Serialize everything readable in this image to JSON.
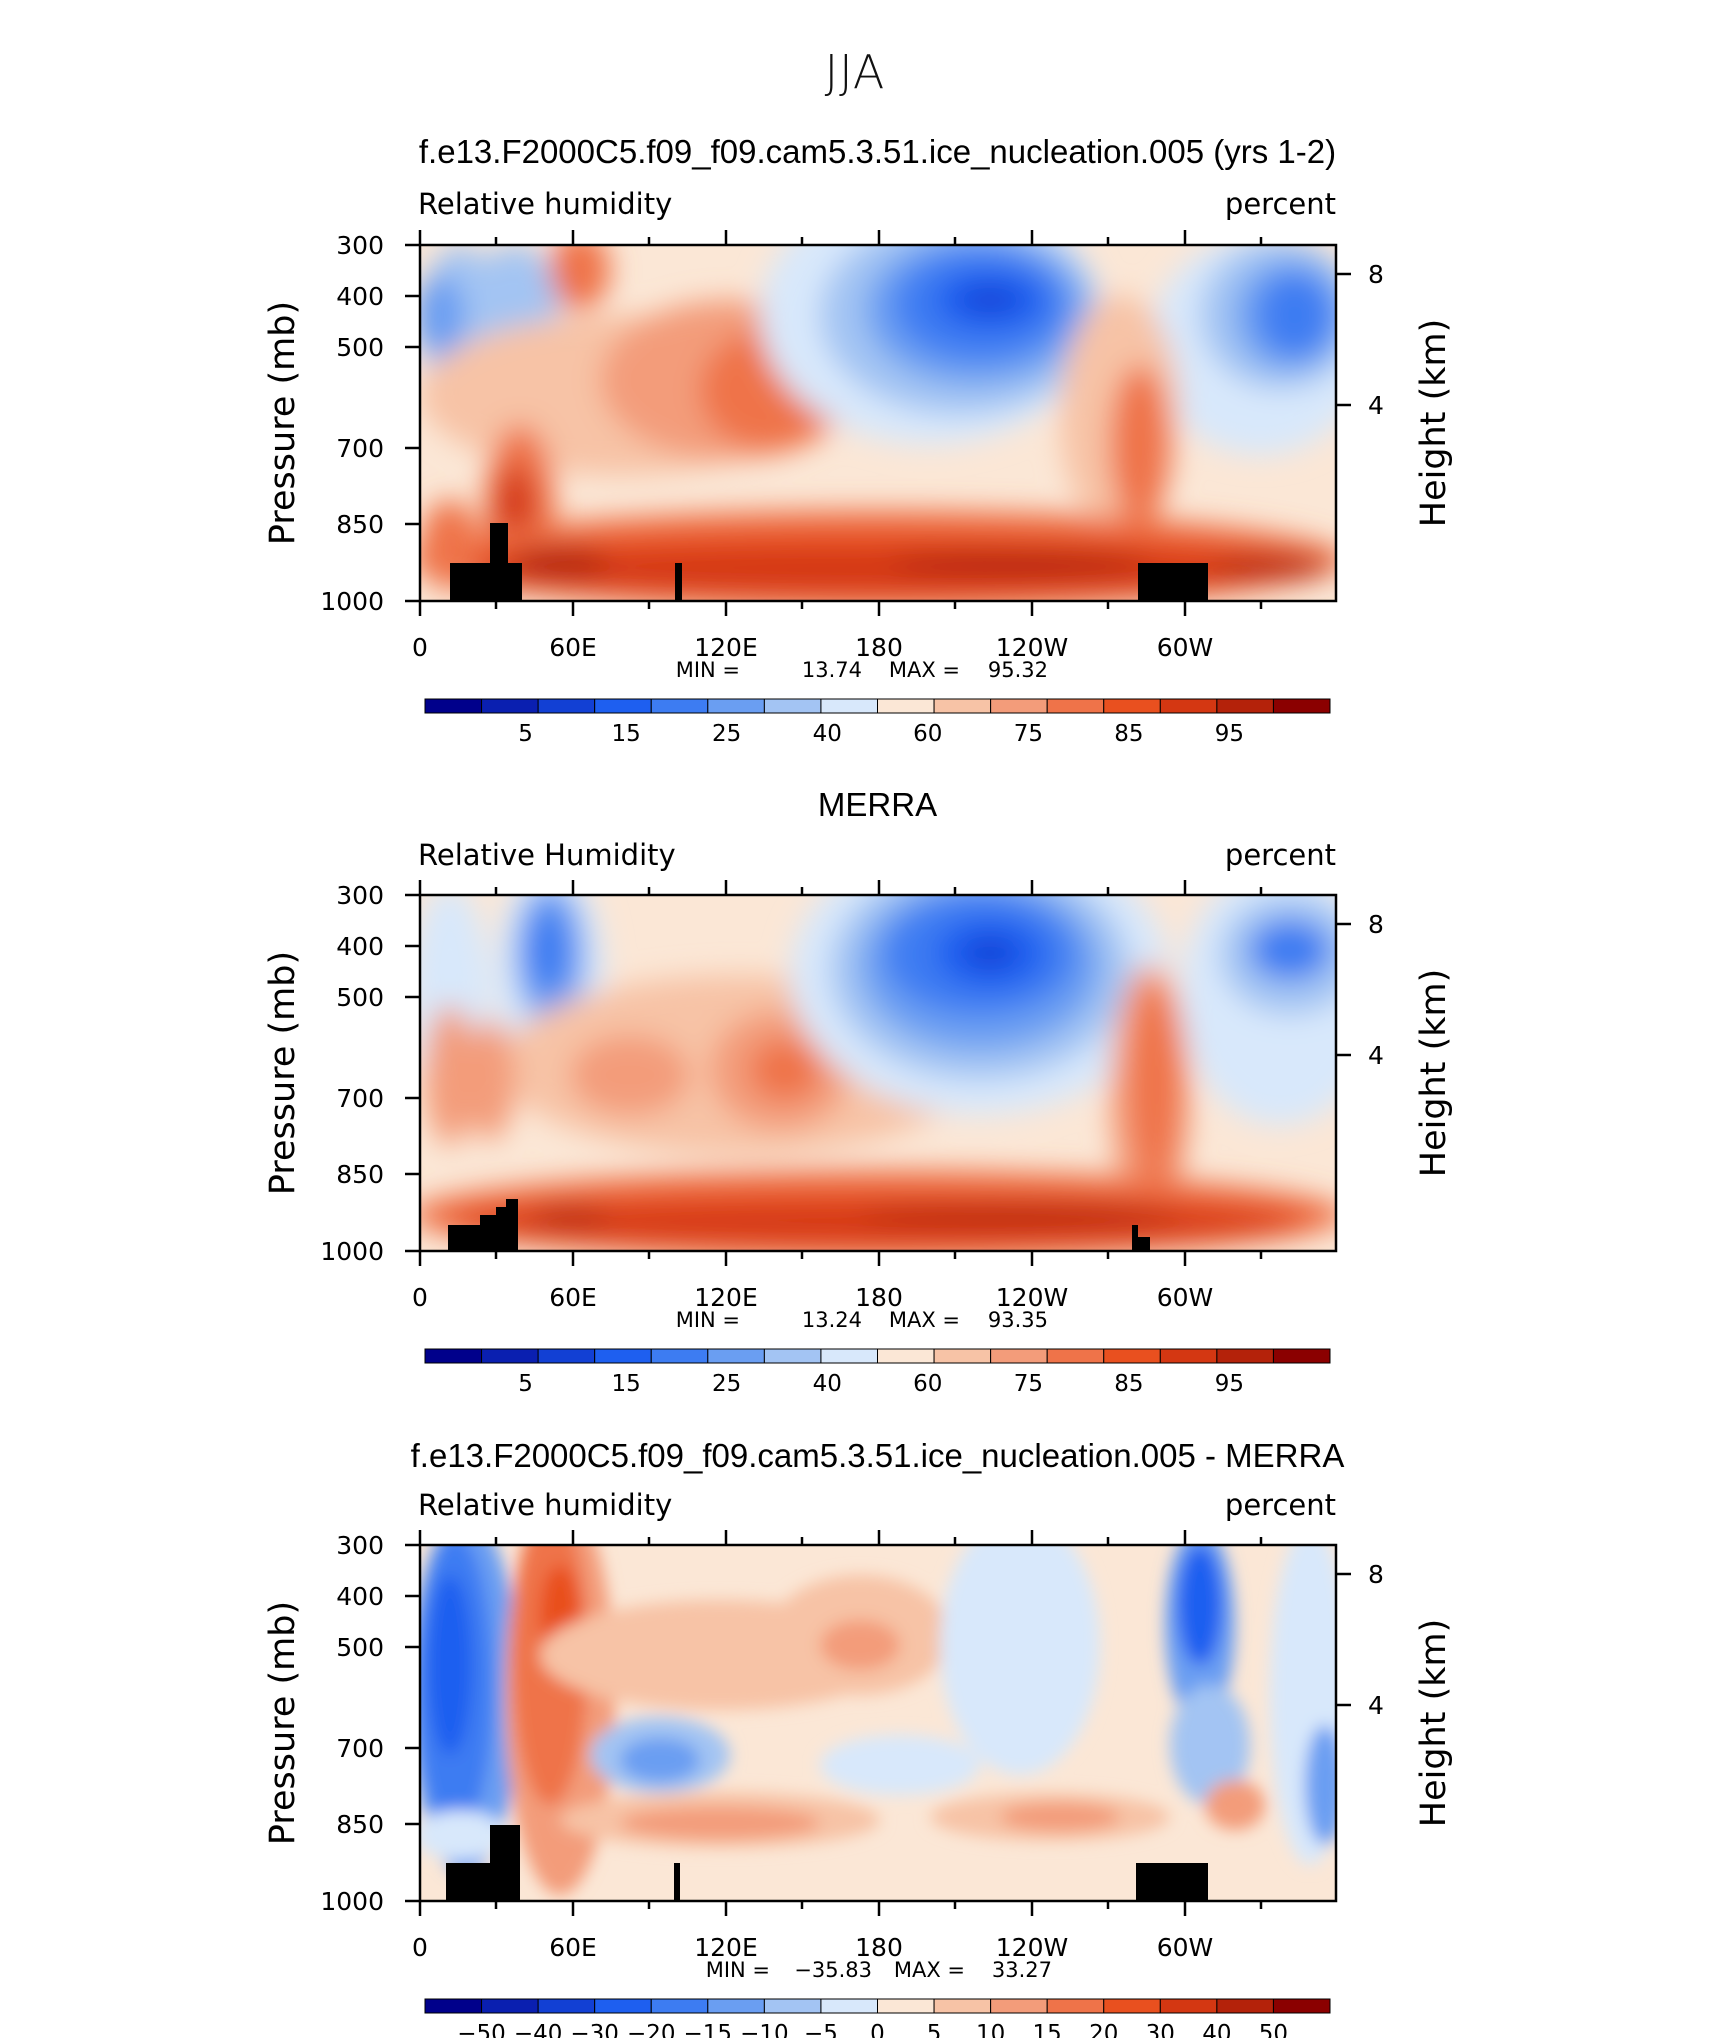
{
  "figure": {
    "title": "JJA"
  },
  "chart_data": [
    {
      "type": "heatmap",
      "title": "f.e13.F2000C5.f09_f09.cam5.3.51.ice_nucleation.005 (yrs 1-2)",
      "left_label": "Relative humidity",
      "right_label": "percent",
      "ylabel": "Pressure (mb)",
      "y2label": "Height (km)",
      "xticks": [
        "0",
        "60E",
        "120E",
        "180",
        "120W",
        "60W"
      ],
      "yticks": [
        "300",
        "400",
        "500",
        "700",
        "850",
        "1000"
      ],
      "y2ticks": [
        "8",
        "4"
      ],
      "stats": {
        "min_label": "MIN =",
        "min": "13.74",
        "max_label": "MAX =",
        "max": "95.32"
      },
      "colorbar_labels": [
        "5",
        "15",
        "25",
        "40",
        "60",
        "75",
        "85",
        "95"
      ]
    },
    {
      "type": "heatmap",
      "title": "MERRA",
      "left_label": "Relative Humidity",
      "right_label": "percent",
      "ylabel": "Pressure (mb)",
      "y2label": "Height (km)",
      "xticks": [
        "0",
        "60E",
        "120E",
        "180",
        "120W",
        "60W"
      ],
      "yticks": [
        "300",
        "400",
        "500",
        "700",
        "850",
        "1000"
      ],
      "y2ticks": [
        "8",
        "4"
      ],
      "stats": {
        "min_label": "MIN =",
        "min": "13.24",
        "max_label": "MAX =",
        "max": "93.35"
      },
      "colorbar_labels": [
        "5",
        "15",
        "25",
        "40",
        "60",
        "75",
        "85",
        "95"
      ]
    },
    {
      "type": "heatmap",
      "title": "f.e13.F2000C5.f09_f09.cam5.3.51.ice_nucleation.005 - MERRA",
      "left_label": "Relative humidity",
      "right_label": "percent",
      "ylabel": "Pressure (mb)",
      "y2label": "Height (km)",
      "xticks": [
        "0",
        "60E",
        "120E",
        "180",
        "120W",
        "60W"
      ],
      "yticks": [
        "300",
        "400",
        "500",
        "700",
        "850",
        "1000"
      ],
      "y2ticks": [
        "8",
        "4"
      ],
      "stats": {
        "min_label": "MIN =",
        "min": "−35.83",
        "max_label": "MAX =",
        "max": "33.27"
      },
      "colorbar_labels": [
        "−50",
        "−40",
        "−30",
        "−20",
        "−15",
        "−10",
        "−5",
        "0",
        "5",
        "10",
        "15",
        "20",
        "30",
        "40",
        "50"
      ]
    }
  ],
  "colors": {
    "colorbar": [
      "#00008b",
      "#0a1fb0",
      "#1240d4",
      "#1e5ff0",
      "#3d7cf2",
      "#6a9ef2",
      "#a3c4f3",
      "#d8e8fb",
      "#fbe7d6",
      "#f7c3a6",
      "#f39c7a",
      "#ef7349",
      "#e9501f",
      "#d43712",
      "#b4220a",
      "#8b0000"
    ],
    "land": "#000000"
  }
}
